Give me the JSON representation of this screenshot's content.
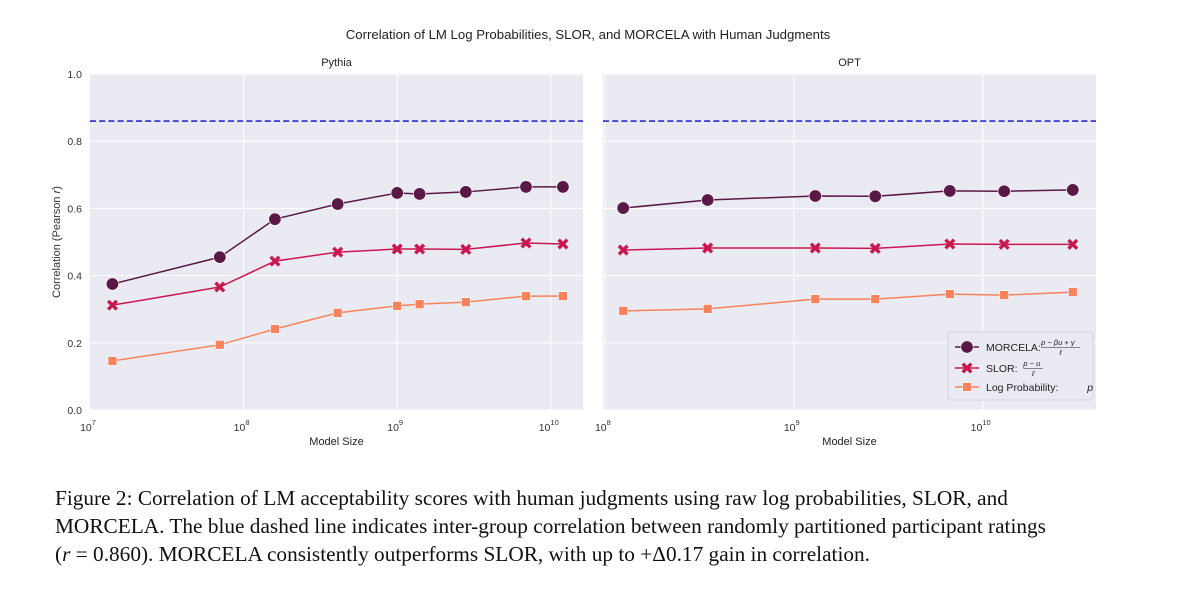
{
  "chart_data": {
    "type": "line",
    "title": "Correlation of LM Log Probabilities, SLOR, and MORCELA with Human Judgments",
    "ylabel": "Correlation (Pearson r)",
    "ylim": [
      0.0,
      1.0
    ],
    "yticks": [
      "0.0",
      "0.2",
      "0.4",
      "0.6",
      "0.8",
      "1.0"
    ],
    "xscale": "log",
    "grid": true,
    "reference_line": {
      "value": 0.86,
      "style": "dashed",
      "color": "#2b2bd0",
      "label": "inter-group correlation"
    },
    "legend": {
      "placement": "lower-right (OPT panel)",
      "entries": [
        {
          "series": "MORCELA",
          "label": "MORCELA: ",
          "formula_num": "p − βu + γ",
          "formula_den": "ℓ"
        },
        {
          "series": "SLOR",
          "label": "SLOR: ",
          "formula_num": "p − u",
          "formula_den": "ℓ"
        },
        {
          "series": "Log Probability",
          "label": "Log Probability: ",
          "formula": "p"
        }
      ]
    },
    "series_styles": [
      {
        "name": "MORCELA",
        "color": "#5a1846",
        "marker": "circle"
      },
      {
        "name": "SLOR",
        "color": "#c9184f",
        "marker": "x"
      },
      {
        "name": "Log Probability",
        "color": "#f7825b",
        "marker": "square"
      }
    ],
    "panels": [
      {
        "subtitle": "Pythia",
        "xlabel": "Model Size",
        "xlim_log10": [
          7.0,
          10.21
        ],
        "xticks": [
          {
            "base": "10",
            "exp": "7"
          },
          {
            "base": "10",
            "exp": "8"
          },
          {
            "base": "10",
            "exp": "9"
          },
          {
            "base": "10",
            "exp": "10"
          }
        ],
        "xtick_values_log10": [
          7,
          8,
          9,
          10
        ],
        "x": [
          14000000.0,
          70000000.0,
          160000000.0,
          410000000.0,
          1000000000.0,
          1400000000.0,
          2800000000.0,
          6900000000.0,
          12000000000.0
        ],
        "series": [
          {
            "name": "MORCELA",
            "values": [
              0.375,
              0.455,
              0.568,
              0.613,
              0.646,
              0.643,
              0.649,
              0.664,
              0.664
            ]
          },
          {
            "name": "SLOR",
            "values": [
              0.312,
              0.366,
              0.443,
              0.47,
              0.479,
              0.479,
              0.478,
              0.497,
              0.494
            ]
          },
          {
            "name": "Log Probability",
            "values": [
              0.146,
              0.194,
              0.241,
              0.289,
              0.31,
              0.315,
              0.321,
              0.339,
              0.339
            ]
          }
        ]
      },
      {
        "subtitle": "OPT",
        "xlabel": "Model Size",
        "xlim_log10": [
          7.99,
          10.6
        ],
        "xticks": [
          {
            "base": "10",
            "exp": "8"
          },
          {
            "base": "10",
            "exp": "9"
          },
          {
            "base": "10",
            "exp": "10"
          }
        ],
        "xtick_values_log10": [
          8,
          9,
          10
        ],
        "x": [
          125000000.0,
          350000000.0,
          1300000000.0,
          2700000000.0,
          6700000000.0,
          13000000000.0,
          30000000000.0
        ],
        "series": [
          {
            "name": "MORCELA",
            "values": [
              0.601,
              0.625,
              0.637,
              0.636,
              0.652,
              0.651,
              0.655
            ]
          },
          {
            "name": "SLOR",
            "values": [
              0.476,
              0.482,
              0.482,
              0.481,
              0.494,
              0.493,
              0.493
            ]
          },
          {
            "name": "Log Probability",
            "values": [
              0.295,
              0.301,
              0.33,
              0.33,
              0.345,
              0.342,
              0.351
            ]
          }
        ]
      }
    ]
  },
  "caption": {
    "line1": "Figure 2: Correlation of LM acceptability scores with human judgments using raw log probabilities, SLOR, and",
    "line2": "MORCELA. The blue dashed line indicates inter-group correlation between randomly partitioned participant ratings",
    "line3_r": "r",
    "line3_rest": " = 0.860). MORCELA consistently outperforms SLOR, with up to +Δ0.17 gain in correlation.",
    "line3_open": "("
  }
}
